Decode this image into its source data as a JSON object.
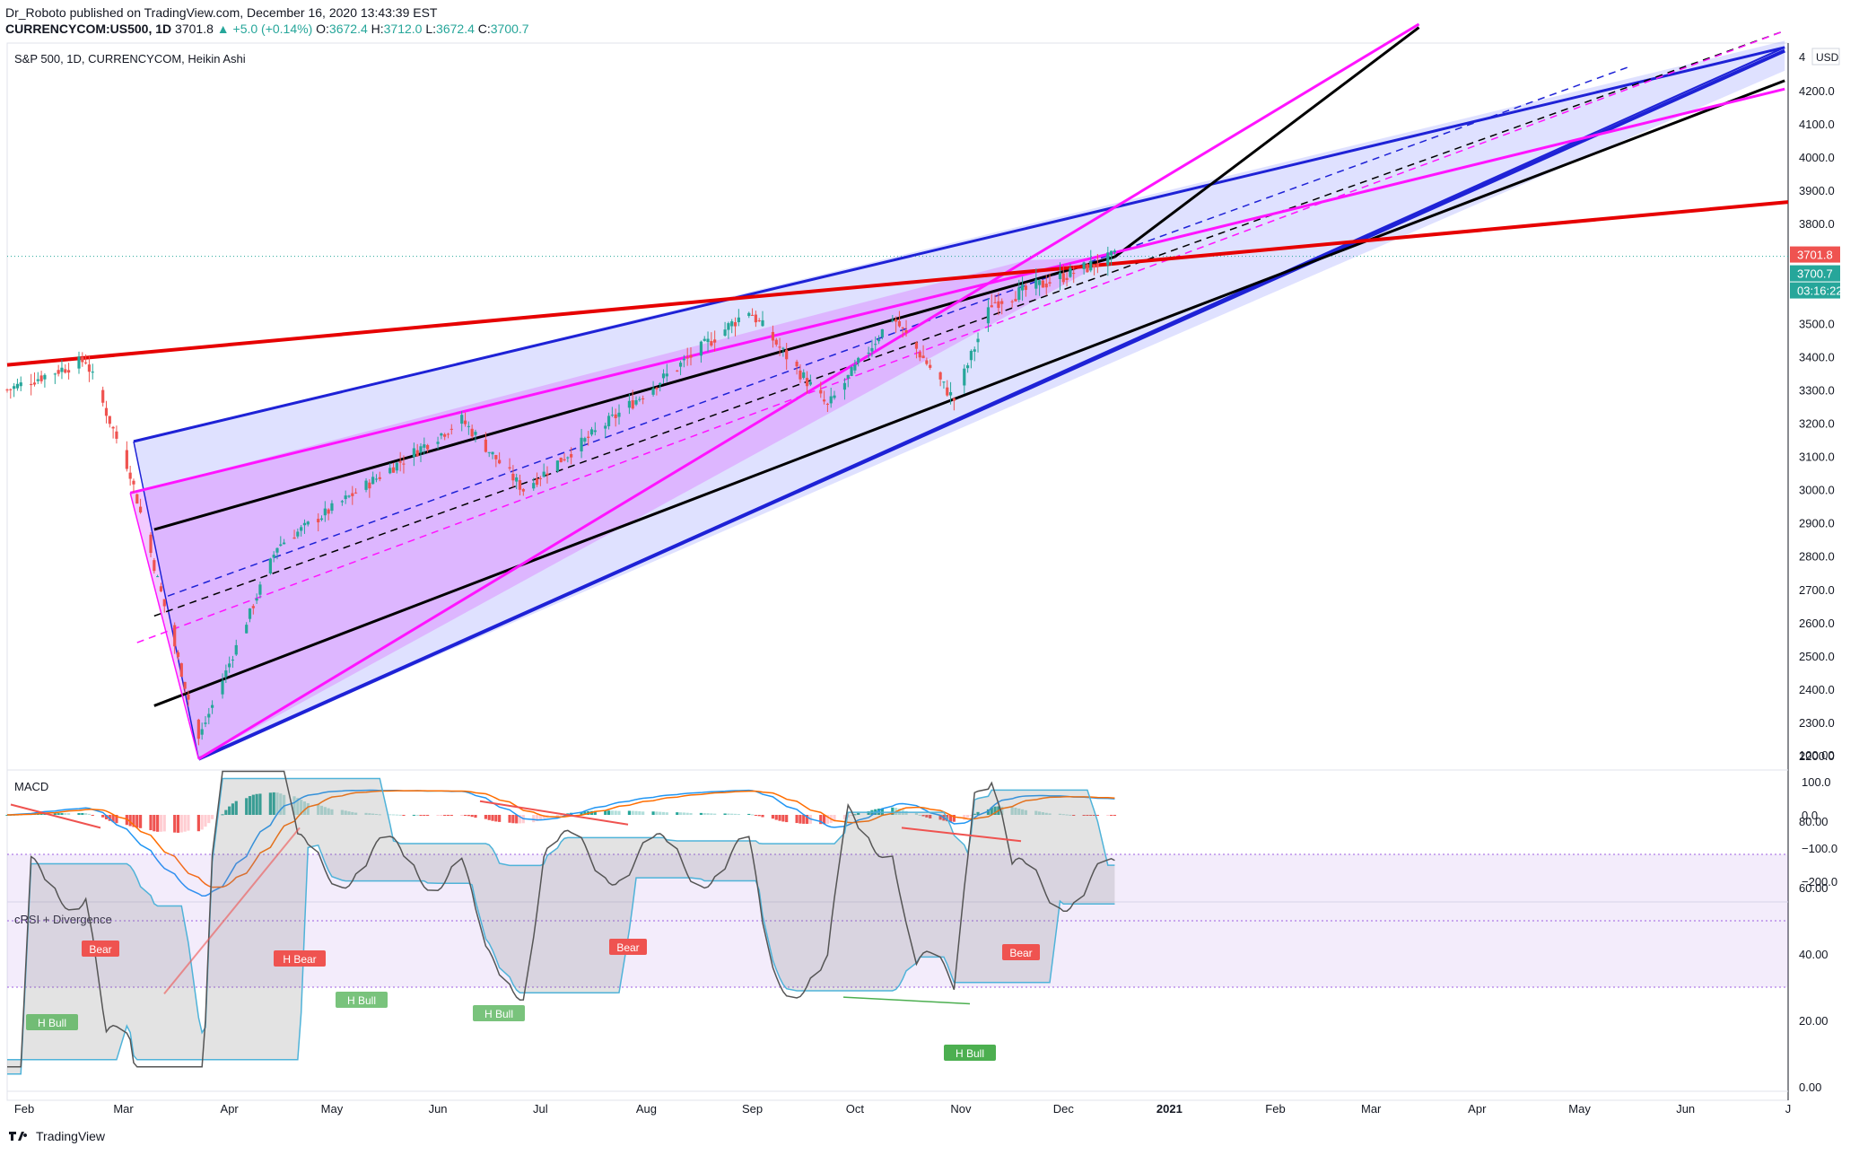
{
  "header": {
    "publisher": "Dr_Roboto published on TradingView.com, December 16, 2020 13:43:39 EST",
    "symbol": "CURRENCYCOM:US500, 1D",
    "last": "3701.8",
    "change": "+5.0 (+0.14%)",
    "ohlc": {
      "o_label": "O:",
      "o": "3672.4",
      "h_label": "H:",
      "h": "3712.0",
      "l_label": "L:",
      "l": "3672.4",
      "c_label": "C:",
      "c": "3700.7"
    }
  },
  "chart_title": "S&P 500, 1D, CURRENCYCOM, Heikin Ashi",
  "currency": "USD",
  "price_axis_partial": "4",
  "price_labels": {
    "last": "3701.8",
    "ha_close": "3700.7",
    "countdown": "03:16:22"
  },
  "colors": {
    "up": "#26a69a",
    "down": "#ef5350",
    "blue": "#1e22d6",
    "magenta": "#ff14ff",
    "red": "#e60000",
    "black": "#000000",
    "macd": "#2196f3",
    "signal": "#ff6d00",
    "crsi": "#555555",
    "band": "#4fb3d9"
  },
  "x_axis": {
    "months": [
      "Feb",
      "Mar",
      "Apr",
      "May",
      "Jun",
      "Jul",
      "Aug",
      "Sep",
      "Oct",
      "Nov",
      "Dec",
      "2021",
      "Feb",
      "Mar",
      "Apr",
      "May",
      "Jun",
      "J"
    ]
  },
  "panes": {
    "macd": {
      "title": "MACD",
      "ticks": [
        "100.0",
        "0.0",
        "−100.0",
        "−200.0"
      ]
    },
    "crsi": {
      "title": "cRSI + Divergence",
      "ticks": [
        "100.00",
        "80.00",
        "60.00",
        "40.00",
        "20.00",
        "0.00"
      ],
      "labels": [
        {
          "text": "Bear",
          "type": "bear"
        },
        {
          "text": "H Bear",
          "type": "bear"
        },
        {
          "text": "Bear",
          "type": "bear"
        },
        {
          "text": "Bear",
          "type": "bear"
        },
        {
          "text": "H Bull",
          "type": "bull"
        },
        {
          "text": "H Bull",
          "type": "bull"
        },
        {
          "text": "H Bull",
          "type": "bull"
        },
        {
          "text": "H Bull",
          "type": "bull"
        }
      ]
    }
  },
  "chart_data": {
    "type": "candlestick",
    "title": "S&P 500, 1D, CURRENCYCOM, Heikin Ashi",
    "y_axis_ticks": [
      4200,
      4100,
      4000,
      3900,
      3800,
      3700,
      3600,
      3500,
      3400,
      3300,
      3200,
      3100,
      3000,
      2900,
      2800,
      2700,
      2600,
      2500,
      2400,
      2300,
      2200
    ],
    "ylim": [
      2150,
      4330
    ],
    "x_range": [
      "2020-01-27",
      "2021-07-01"
    ],
    "key_points": [
      {
        "date": "2020-01-27",
        "close": 3300
      },
      {
        "date": "2020-02-19",
        "close": 3390
      },
      {
        "date": "2020-03-03",
        "close": 3050
      },
      {
        "date": "2020-03-23",
        "close": 2250
      },
      {
        "date": "2020-04-15",
        "close": 2830
      },
      {
        "date": "2020-06-08",
        "close": 3210
      },
      {
        "date": "2020-06-26",
        "close": 3000
      },
      {
        "date": "2020-08-31",
        "close": 3540
      },
      {
        "date": "2020-09-23",
        "close": 3250
      },
      {
        "date": "2020-10-12",
        "close": 3520
      },
      {
        "date": "2020-10-30",
        "close": 3270
      },
      {
        "date": "2020-11-10",
        "close": 3560
      },
      {
        "date": "2020-12-16",
        "close": 3700.7
      }
    ],
    "last_price": 3701.8
  }
}
